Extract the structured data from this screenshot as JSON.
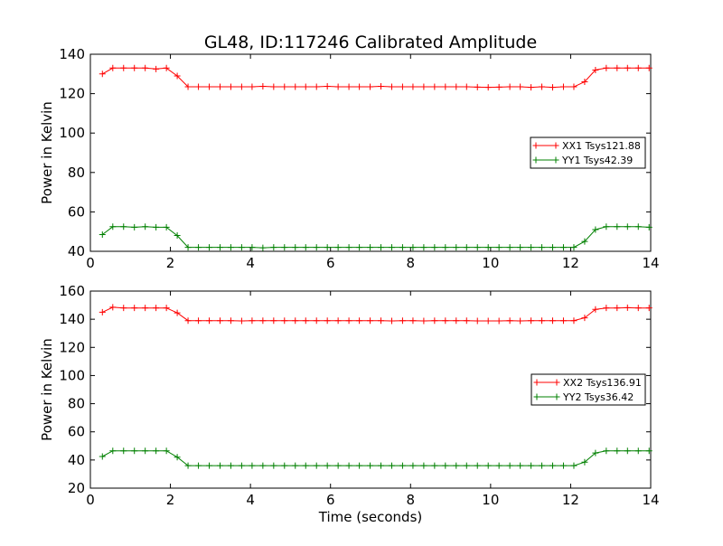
{
  "title": "GL48, ID:117246 Calibrated Amplitude",
  "colors": {
    "red": "#ff0000",
    "green": "#008000",
    "axes": "#000000"
  },
  "chart_data": [
    {
      "type": "line",
      "title": "GL48, ID:117246 Calibrated Amplitude",
      "xlabel": "",
      "ylabel": "Power in Kelvin",
      "xlim": [
        0,
        14
      ],
      "ylim": [
        40,
        140
      ],
      "xticks": [
        "0",
        "2",
        "4",
        "6",
        "8",
        "10",
        "12",
        "14"
      ],
      "yticks": [
        "40",
        "60",
        "80",
        "100",
        "120",
        "140"
      ],
      "grid": false,
      "legend_position": "right",
      "marker": "+",
      "x": [
        0.3,
        0.56,
        0.83,
        1.1,
        1.37,
        1.64,
        1.9,
        2.17,
        2.44,
        2.7,
        2.97,
        3.24,
        3.51,
        3.78,
        4.04,
        4.31,
        4.58,
        4.85,
        5.12,
        5.38,
        5.65,
        5.92,
        6.19,
        6.46,
        6.72,
        6.99,
        7.26,
        7.53,
        7.8,
        8.06,
        8.33,
        8.6,
        8.87,
        9.14,
        9.4,
        9.67,
        9.94,
        10.21,
        10.48,
        10.74,
        11.01,
        11.28,
        11.55,
        11.82,
        12.08,
        12.35,
        12.62,
        12.89,
        13.16,
        13.42,
        13.69,
        13.96
      ],
      "series": [
        {
          "name": "XX1 Tsys121.88",
          "color": "#ff0000",
          "values": [
            130,
            133,
            133,
            133,
            133,
            132.5,
            133,
            129,
            123.5,
            123.5,
            123.5,
            123.5,
            123.5,
            123.5,
            123.5,
            123.7,
            123.5,
            123.5,
            123.5,
            123.5,
            123.5,
            123.7,
            123.5,
            123.5,
            123.5,
            123.5,
            123.7,
            123.5,
            123.5,
            123.5,
            123.5,
            123.5,
            123.5,
            123.5,
            123.5,
            123.3,
            123.2,
            123.3,
            123.5,
            123.5,
            123.2,
            123.5,
            123.2,
            123.5,
            123.5,
            126,
            132,
            133,
            133,
            133,
            133,
            133
          ]
        },
        {
          "name": "YY1 Tsys42.39",
          "color": "#008000",
          "values": [
            48.5,
            52.5,
            52.5,
            52.2,
            52.5,
            52.2,
            52.2,
            48,
            42,
            42,
            42,
            42,
            42,
            42,
            42,
            41.8,
            42,
            42,
            42,
            42,
            42,
            42,
            42,
            42,
            42,
            42,
            42,
            42,
            42,
            42,
            42,
            42,
            42,
            42,
            42,
            42,
            42,
            42,
            42,
            42,
            42,
            42,
            42,
            42,
            42,
            45,
            51,
            52.5,
            52.5,
            52.5,
            52.5,
            52.2
          ]
        }
      ]
    },
    {
      "type": "line",
      "title": "",
      "xlabel": "Time (seconds)",
      "ylabel": "Power in Kelvin",
      "xlim": [
        0,
        14
      ],
      "ylim": [
        20,
        160
      ],
      "xticks": [
        "0",
        "2",
        "4",
        "6",
        "8",
        "10",
        "12",
        "14"
      ],
      "yticks": [
        "20",
        "40",
        "60",
        "80",
        "100",
        "120",
        "140",
        "160"
      ],
      "grid": false,
      "legend_position": "right",
      "marker": "+",
      "x": [
        0.3,
        0.56,
        0.83,
        1.1,
        1.37,
        1.64,
        1.9,
        2.17,
        2.44,
        2.7,
        2.97,
        3.24,
        3.51,
        3.78,
        4.04,
        4.31,
        4.58,
        4.85,
        5.12,
        5.38,
        5.65,
        5.92,
        6.19,
        6.46,
        6.72,
        6.99,
        7.26,
        7.53,
        7.8,
        8.06,
        8.33,
        8.6,
        8.87,
        9.14,
        9.4,
        9.67,
        9.94,
        10.21,
        10.48,
        10.74,
        11.01,
        11.28,
        11.55,
        11.82,
        12.08,
        12.35,
        12.62,
        12.89,
        13.16,
        13.42,
        13.69,
        13.96
      ],
      "series": [
        {
          "name": "XX2 Tsys136.91",
          "color": "#ff0000",
          "values": [
            145,
            148.5,
            148,
            148,
            148,
            148,
            148,
            144.5,
            139,
            139,
            139,
            139,
            139,
            138.8,
            139,
            139,
            139,
            139,
            139,
            139,
            139,
            139,
            139,
            139,
            139,
            139,
            139,
            138.8,
            139,
            139,
            138.8,
            139,
            139,
            139,
            139,
            138.8,
            138.8,
            138.8,
            139,
            138.8,
            139,
            139,
            139,
            139,
            139,
            141,
            147,
            148,
            148,
            148.2,
            148,
            148
          ]
        },
        {
          "name": "YY2 Tsys36.42",
          "color": "#008000",
          "values": [
            42.5,
            46.5,
            46.5,
            46.5,
            46.5,
            46.5,
            46.5,
            42,
            36,
            36,
            36,
            36,
            36,
            36,
            36,
            36,
            36,
            36,
            36,
            36,
            36,
            36,
            36,
            36,
            36,
            36,
            36,
            36,
            36,
            36,
            36,
            36,
            36,
            36,
            36,
            36,
            36,
            36,
            36,
            36,
            36,
            36,
            36,
            36,
            36,
            38.5,
            45,
            46.5,
            46.5,
            46.5,
            46.5,
            46.5
          ]
        }
      ]
    }
  ]
}
